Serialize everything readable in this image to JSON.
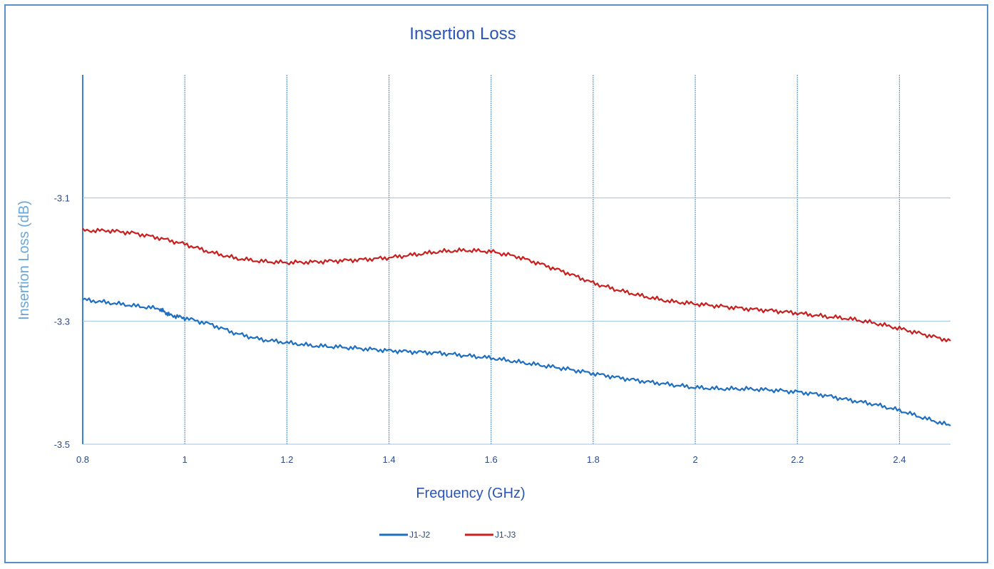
{
  "chart_data": {
    "type": "line",
    "title": "Insertion Loss",
    "xlabel": "Frequency (GHz)",
    "ylabel": "Insertion Loss (dB)",
    "xlim": [
      0.8,
      2.5
    ],
    "ylim": [
      -3.5,
      -2.9
    ],
    "x_ticks": [
      0.8,
      1,
      1.2,
      1.4,
      1.6,
      1.8,
      2,
      2.2,
      2.4
    ],
    "x_tick_labels": [
      "0.8",
      "1",
      "1.2",
      "1.4",
      "1.6",
      "1.8",
      "2",
      "2.2",
      "2.4"
    ],
    "y_ticks": [
      -3.1,
      -3.3,
      -3.5
    ],
    "y_tick_labels": [
      "-3.1",
      "-3.3",
      "-3.5"
    ],
    "grid": true,
    "legend_position": "bottom-center",
    "series": [
      {
        "name": "J1-J2",
        "color": "#1f6fc0",
        "x": [
          0.8,
          0.85,
          0.9,
          0.95,
          0.97,
          1.0,
          1.05,
          1.1,
          1.15,
          1.2,
          1.25,
          1.3,
          1.35,
          1.4,
          1.45,
          1.5,
          1.55,
          1.6,
          1.65,
          1.7,
          1.75,
          1.8,
          1.85,
          1.9,
          1.95,
          2.0,
          2.05,
          2.1,
          2.15,
          2.2,
          2.25,
          2.3,
          2.35,
          2.4,
          2.45,
          2.5
        ],
        "y": [
          -3.265,
          -3.27,
          -3.275,
          -3.28,
          -3.29,
          -3.295,
          -3.305,
          -3.32,
          -3.33,
          -3.335,
          -3.34,
          -3.342,
          -3.345,
          -3.348,
          -3.35,
          -3.352,
          -3.356,
          -3.36,
          -3.366,
          -3.372,
          -3.378,
          -3.385,
          -3.392,
          -3.398,
          -3.403,
          -3.408,
          -3.41,
          -3.41,
          -3.412,
          -3.415,
          -3.42,
          -3.428,
          -3.435,
          -3.445,
          -3.458,
          -3.47
        ]
      },
      {
        "name": "J1-J3",
        "color": "#c8201e",
        "x": [
          0.8,
          0.85,
          0.9,
          0.95,
          1.0,
          1.05,
          1.1,
          1.15,
          1.2,
          1.25,
          1.3,
          1.35,
          1.4,
          1.45,
          1.5,
          1.55,
          1.6,
          1.65,
          1.7,
          1.75,
          1.8,
          1.85,
          1.9,
          1.95,
          2.0,
          2.05,
          2.1,
          2.15,
          2.2,
          2.25,
          2.3,
          2.35,
          2.4,
          2.45,
          2.5
        ],
        "y": [
          -3.153,
          -3.153,
          -3.157,
          -3.165,
          -3.175,
          -3.188,
          -3.198,
          -3.203,
          -3.205,
          -3.204,
          -3.202,
          -3.2,
          -3.197,
          -3.192,
          -3.187,
          -3.185,
          -3.187,
          -3.195,
          -3.208,
          -3.222,
          -3.238,
          -3.25,
          -3.26,
          -3.268,
          -3.272,
          -3.276,
          -3.28,
          -3.283,
          -3.287,
          -3.292,
          -3.296,
          -3.303,
          -3.312,
          -3.322,
          -3.332
        ]
      }
    ]
  }
}
